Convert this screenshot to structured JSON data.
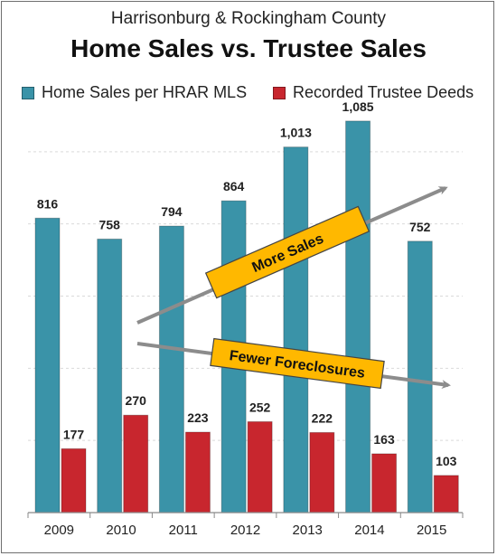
{
  "chart_data": {
    "type": "bar",
    "subtitle": "Harrisonburg & Rockingham County",
    "title": "Home Sales vs. Trustee Sales",
    "categories": [
      "2009",
      "2010",
      "2011",
      "2012",
      "2013",
      "2014",
      "2015"
    ],
    "series": [
      {
        "name": "Home Sales per HRAR MLS",
        "color": "#3a93a8",
        "values": [
          816,
          758,
          794,
          864,
          1013,
          1085,
          752
        ],
        "labels": [
          "816",
          "758",
          "794",
          "864",
          "1,013",
          "1,085",
          "752"
        ]
      },
      {
        "name": "Recorded Trustee Deeds",
        "color": "#c8262e",
        "values": [
          177,
          270,
          223,
          252,
          222,
          163,
          103
        ],
        "labels": [
          "177",
          "270",
          "223",
          "252",
          "222",
          "163",
          "103"
        ]
      }
    ],
    "ylim": [
      0,
      1200
    ],
    "grid": true,
    "legend_position": "top",
    "annotations": [
      {
        "text": "More Sales",
        "trend": "up"
      },
      {
        "text": "Fewer Foreclosures",
        "trend": "down"
      }
    ],
    "annotation_color": "#ffb800"
  }
}
